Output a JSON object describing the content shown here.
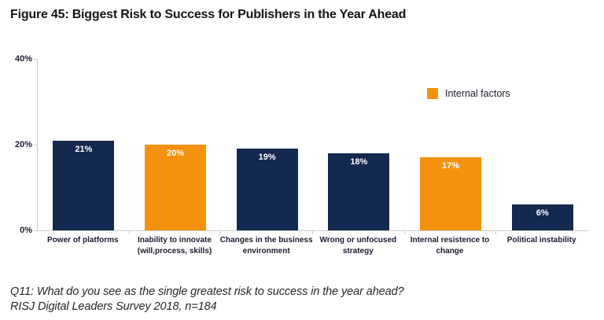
{
  "title": "Figure 45: Biggest Risk to Success for Publishers in the Year Ahead",
  "legend": {
    "label": "Internal factors",
    "color": "#F5920D"
  },
  "colors": {
    "navy": "#13294F",
    "orange": "#F5920D",
    "axis_line": "#C9C9C9",
    "value_label": "#FFFFFF",
    "category_label": "#1B1B2E"
  },
  "footer": {
    "line1": "Q11: What do you see as the single greatest risk to success in the year ahead?",
    "line2": "RISJ Digital Leaders Survey 2018, n=184"
  },
  "chart_data": {
    "type": "bar",
    "title": "Figure 45: Biggest Risk to Success for Publishers in the Year Ahead",
    "categories": [
      "Power of platforms",
      "Inability to innovate\n(will,process, skills)",
      "Changes in the business\nenvironment",
      "Wrong or unfocused strategy",
      "Internal resistence to change",
      "Political instability"
    ],
    "values": [
      21,
      20,
      19,
      18,
      17,
      6
    ],
    "value_labels": [
      "21%",
      "20%",
      "19%",
      "18%",
      "17%",
      "6%"
    ],
    "internal_factor": [
      false,
      true,
      false,
      false,
      true,
      false
    ],
    "xlabel": "",
    "ylabel": "",
    "ylim": [
      0,
      40
    ],
    "yticks": [
      {
        "label": "40%",
        "value": 40
      },
      {
        "label": "20%",
        "value": 20
      },
      {
        "label": "0%",
        "value": 0
      }
    ],
    "grid": false,
    "legend_position": "upper-right",
    "legend_entries": [
      "Internal factors"
    ]
  }
}
